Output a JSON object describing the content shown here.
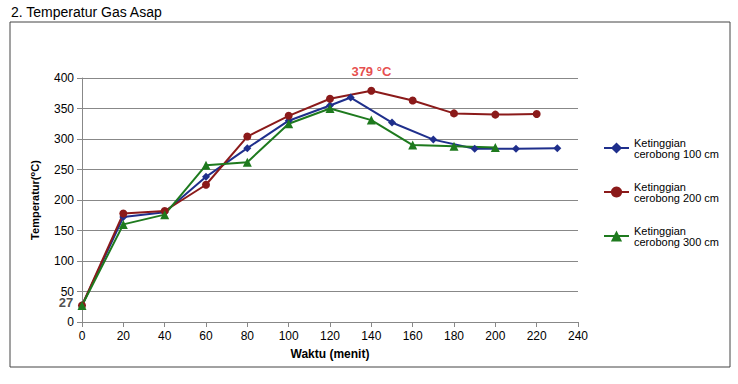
{
  "chart_data": {
    "type": "line",
    "title": "2. Temperatur Gas Asap",
    "x_label": "Waktu (menit)",
    "y_label": "Temperatur(⁰C)",
    "xlim": [
      0,
      240
    ],
    "xticks": [
      0,
      20,
      40,
      60,
      80,
      100,
      120,
      140,
      160,
      180,
      200,
      220,
      240
    ],
    "ylim": [
      0,
      400
    ],
    "yticks": [
      0,
      50,
      100,
      150,
      200,
      250,
      300,
      350,
      400
    ],
    "grid": true,
    "legend": "right",
    "series": [
      {
        "name": "Ketinggian cerobong 100 cm",
        "color": "#1f2f8c",
        "marker": "diamond",
        "x": [
          0,
          20,
          40,
          60,
          80,
          100,
          120,
          130,
          150,
          170,
          190,
          210,
          230
        ],
        "values": [
          27,
          172,
          180,
          238,
          285,
          330,
          355,
          368,
          327,
          299,
          284,
          284,
          285
        ]
      },
      {
        "name": "Ketinggian cerobong 200 cm",
        "color": "#8b1a1a",
        "marker": "circle",
        "x": [
          0,
          20,
          40,
          60,
          80,
          100,
          120,
          140,
          160,
          180,
          200,
          220
        ],
        "values": [
          27,
          178,
          182,
          225,
          304,
          338,
          366,
          379,
          363,
          342,
          340,
          341
        ]
      },
      {
        "name": "Ketinggian cerobong 300 cm",
        "color": "#1e7a1e",
        "marker": "triangle",
        "x": [
          0,
          20,
          40,
          60,
          80,
          100,
          120,
          140,
          160,
          180,
          200
        ],
        "values": [
          27,
          160,
          176,
          257,
          262,
          325,
          350,
          331,
          290,
          288,
          286
        ]
      }
    ],
    "annotations": [
      {
        "text": "379 °C",
        "x": 140,
        "y": 379
      },
      {
        "text": "27",
        "x": 0,
        "y": 27
      }
    ]
  }
}
